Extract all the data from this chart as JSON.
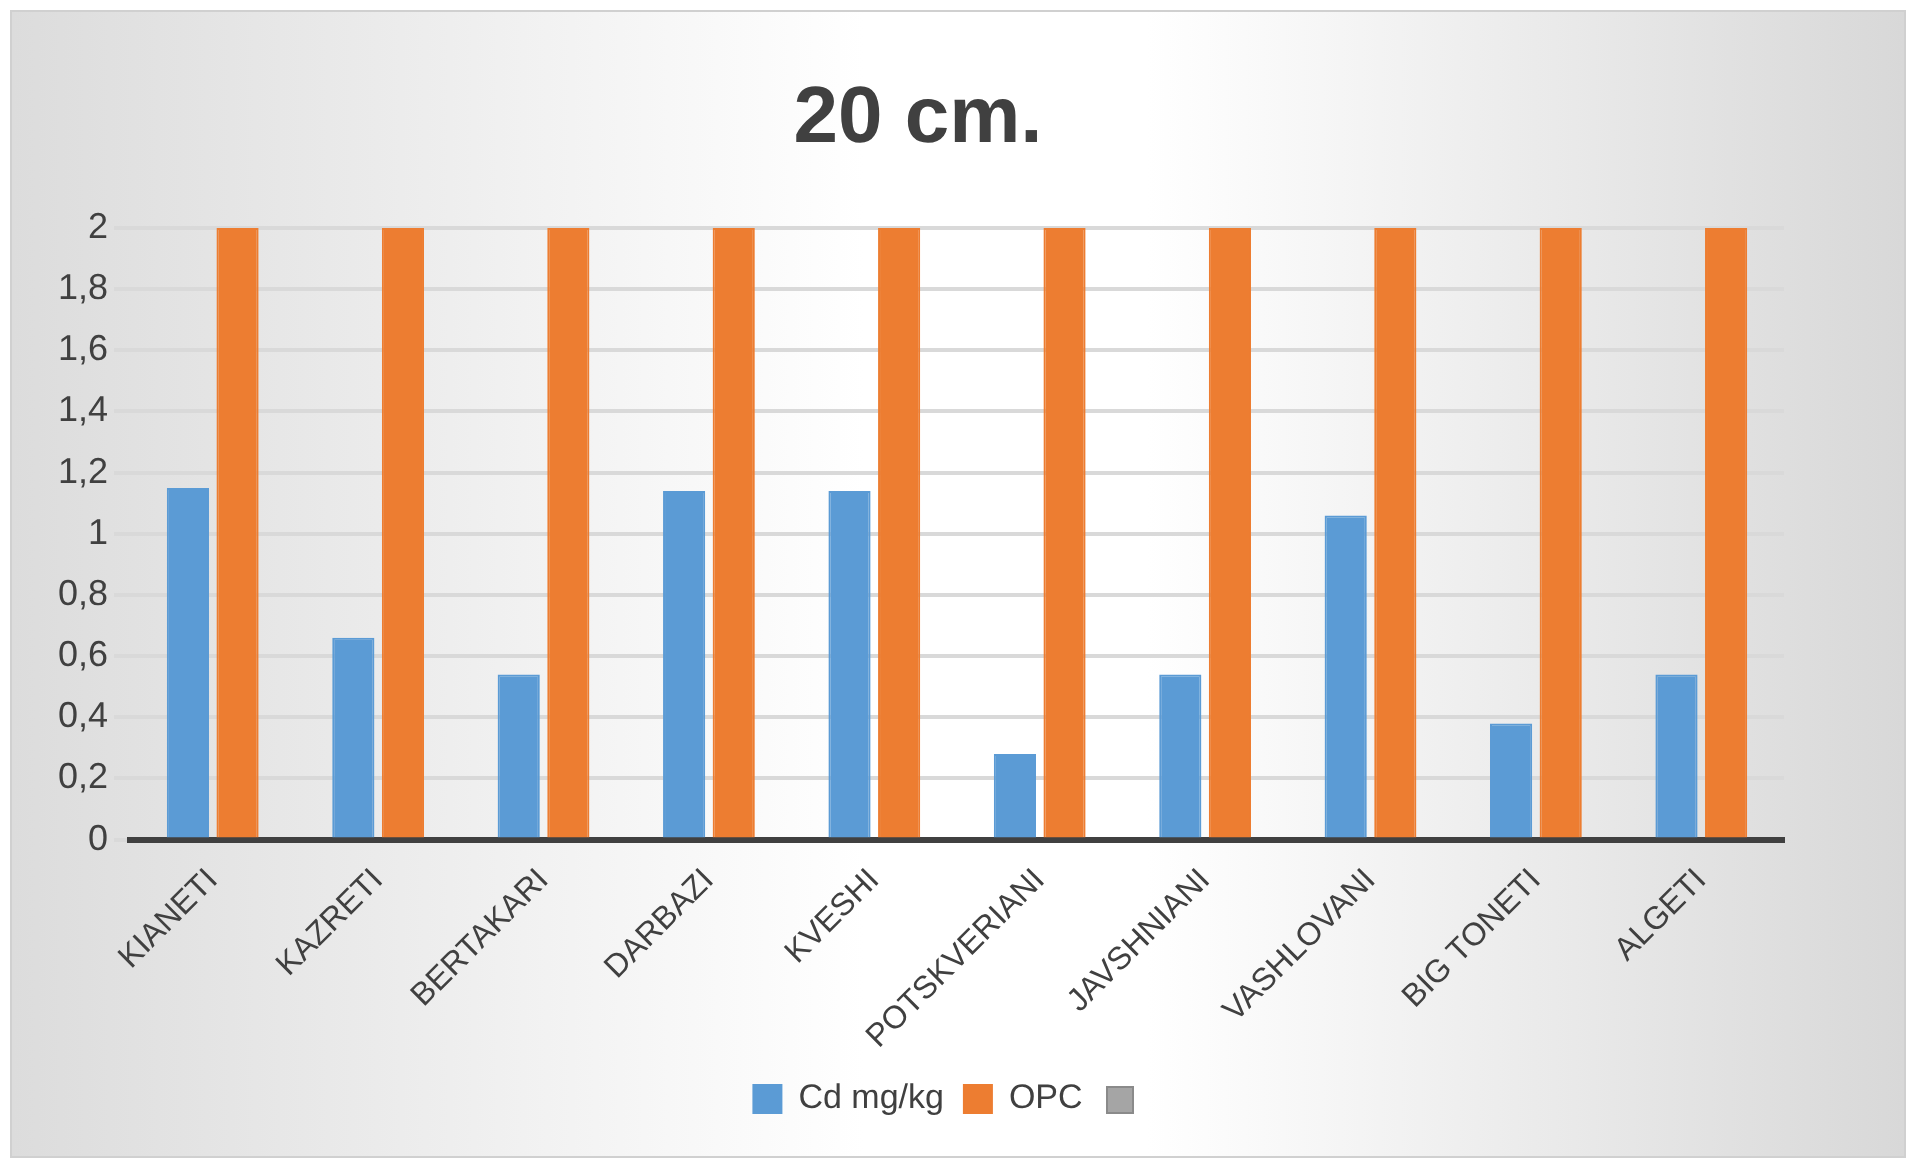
{
  "chart_data": {
    "type": "bar",
    "title": "20 cm.",
    "categories": [
      "KIANETI",
      "KAZRETI",
      "BERTAKARI",
      "DARBAZI",
      "KVESHI",
      "POTSKVERIANI",
      "JAVSHNIANI",
      "VASHLOVANI",
      "BIG TONETI",
      "ALGETI"
    ],
    "series": [
      {
        "name": "Cd mg/kg",
        "color": "#5b9bd5",
        "values": [
          1.15,
          0.66,
          0.54,
          1.14,
          1.14,
          0.28,
          0.54,
          1.06,
          0.38,
          0.54
        ]
      },
      {
        "name": "OPC",
        "color": "#ed7d31",
        "values": [
          2,
          2,
          2,
          2,
          2,
          2,
          2,
          2,
          2,
          2
        ]
      }
    ],
    "ylim": [
      0,
      2
    ],
    "yticks": [
      0,
      {
        "value": 0.2,
        "label": "0,2"
      },
      {
        "value": 0.4,
        "label": "0,4"
      },
      {
        "value": 0.6,
        "label": "0,6"
      },
      {
        "value": 0.8,
        "label": "0,8"
      },
      1,
      {
        "value": 1.2,
        "label": "1,2"
      },
      {
        "value": 1.4,
        "label": "1,4"
      },
      {
        "value": 1.6,
        "label": "1,6"
      },
      {
        "value": 1.8,
        "label": "1,8"
      },
      2
    ],
    "grid": "y",
    "legend": "bottom"
  }
}
